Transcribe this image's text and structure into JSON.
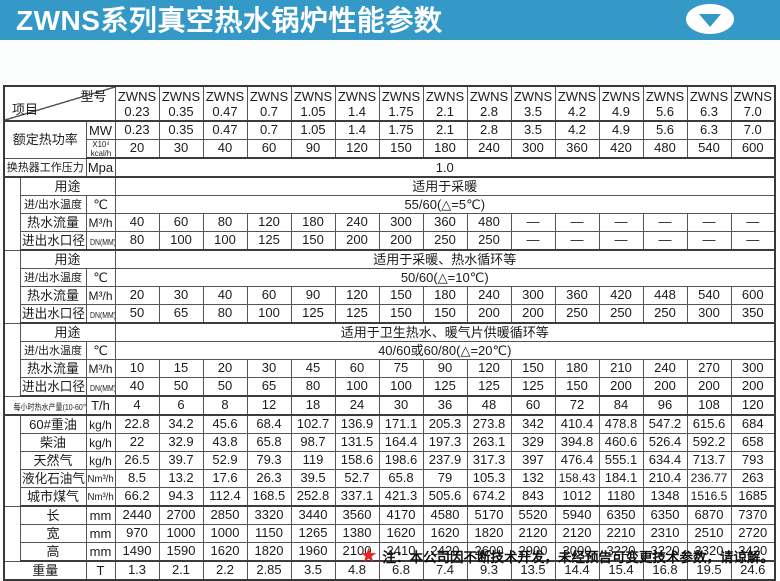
{
  "title": "ZWNS系列真空热水锅炉性能参数",
  "colors": {
    "header_blue": "#3599c8",
    "star_red": "#e8241f",
    "table_border": "#555555"
  },
  "footnote": {
    "star": "★",
    "text": "注：本公司因不断技术开发，未经预告可变更技术参数，请谅解。"
  },
  "table": {
    "corner": {
      "bottom_left": "项目",
      "top_right": "型号"
    },
    "model_prefix": "ZWNS",
    "model_sizes": [
      "0.23",
      "0.35",
      "0.47",
      "0.7",
      "1.05",
      "1.4",
      "1.75",
      "2.1",
      "2.8",
      "3.5",
      "4.2",
      "4.9",
      "5.6",
      "6.3",
      "7.0"
    ],
    "rows": [
      {
        "name": "rated-power-mw",
        "label": "额定热功率",
        "label_rowspan": 2,
        "wide": true,
        "unit": "MW",
        "values": [
          "0.23",
          "0.35",
          "0.47",
          "0.7",
          "1.05",
          "1.4",
          "1.75",
          "2.1",
          "2.8",
          "3.5",
          "4.2",
          "4.9",
          "5.6",
          "6.3",
          "7.0"
        ]
      },
      {
        "name": "rated-power-kcal",
        "unit_lines": [
          "X10⁴",
          "kcal/h"
        ],
        "sec": true,
        "values": [
          "20",
          "30",
          "40",
          "60",
          "90",
          "120",
          "150",
          "180",
          "240",
          "300",
          "360",
          "420",
          "480",
          "540",
          "600"
        ]
      },
      {
        "name": "exchanger-working-pressure",
        "label": "换热器工作压力",
        "wide": true,
        "unit": "Mpa",
        "sec": true,
        "span": "1.0"
      },
      {
        "name": "a-usage",
        "group": "A型换热器",
        "group_rowspan": 4,
        "label": "用途",
        "merge_unit": true,
        "span": "适用于采暖"
      },
      {
        "name": "a-inlet-outlet-temp",
        "label": "进/出水温度",
        "unit": "℃",
        "span": "55/60(△=5℃)"
      },
      {
        "name": "a-hot-water-flow",
        "label": "热水流量",
        "unit": "M³/h",
        "values": [
          "40",
          "60",
          "80",
          "120",
          "180",
          "240",
          "300",
          "360",
          "480",
          "—",
          "—",
          "—",
          "—",
          "—",
          "—"
        ]
      },
      {
        "name": "a-pipe-diameter",
        "label": "进出水口径",
        "unit": "DN(MM)",
        "sec": true,
        "values": [
          "80",
          "100",
          "100",
          "125",
          "150",
          "200",
          "200",
          "250",
          "250",
          "—",
          "—",
          "—",
          "—",
          "—",
          "—"
        ]
      },
      {
        "name": "b-usage",
        "group": "B型换热器",
        "group_rowspan": 4,
        "label": "用途",
        "merge_unit": true,
        "span": "适用于采暖、热水循环等"
      },
      {
        "name": "b-inlet-outlet-temp",
        "label": "进/出水温度",
        "unit": "℃",
        "span": "50/60(△=10℃)"
      },
      {
        "name": "b-hot-water-flow",
        "label": "热水流量",
        "unit": "M³/h",
        "values": [
          "20",
          "30",
          "40",
          "60",
          "90",
          "120",
          "150",
          "180",
          "240",
          "300",
          "360",
          "420",
          "448",
          "540",
          "600"
        ]
      },
      {
        "name": "b-pipe-diameter",
        "label": "进出水口径",
        "unit": "DN(MM)",
        "sec": true,
        "values": [
          "50",
          "65",
          "80",
          "100",
          "125",
          "125",
          "150",
          "150",
          "200",
          "200",
          "250",
          "250",
          "250",
          "300",
          "350"
        ]
      },
      {
        "name": "c-usage",
        "group": "C型换热器",
        "group_rowspan": 4,
        "label": "用途",
        "merge_unit": true,
        "span": "适用于卫生热水、暖气片供暖循环等"
      },
      {
        "name": "c-inlet-outlet-temp",
        "label": "进/出水温度",
        "unit": "℃",
        "span": "40/60或60/80(△=20℃)"
      },
      {
        "name": "c-hot-water-flow",
        "label": "热水流量",
        "unit": "M³/h",
        "values": [
          "10",
          "15",
          "20",
          "30",
          "45",
          "60",
          "75",
          "90",
          "120",
          "150",
          "180",
          "210",
          "240",
          "270",
          "300"
        ]
      },
      {
        "name": "c-pipe-diameter",
        "label": "进出水口径",
        "unit": "DN(MM)",
        "sec": true,
        "values": [
          "40",
          "50",
          "50",
          "65",
          "80",
          "100",
          "100",
          "125",
          "125",
          "125",
          "150",
          "200",
          "200",
          "200",
          "200"
        ]
      },
      {
        "name": "hourly-hot-water-output",
        "label": "每小时热水产量(10-60℃)",
        "wide": true,
        "unit": "T/h",
        "sec": true,
        "values": [
          "4",
          "6",
          "8",
          "12",
          "18",
          "24",
          "30",
          "36",
          "48",
          "60",
          "72",
          "84",
          "96",
          "108",
          "120"
        ]
      },
      {
        "name": "fuel-heavy-oil-60",
        "group": "燃料消耗量",
        "group_rowspan": 5,
        "label": "60#重油",
        "unit": "kg/h",
        "values": [
          "22.8",
          "34.2",
          "45.6",
          "68.4",
          "102.7",
          "136.9",
          "171.1",
          "205.3",
          "273.8",
          "342",
          "410.4",
          "478.8",
          "547.2",
          "615.6",
          "684"
        ]
      },
      {
        "name": "fuel-diesel",
        "label": "柴油",
        "unit": "kg/h",
        "values": [
          "22",
          "32.9",
          "43.8",
          "65.8",
          "98.7",
          "131.5",
          "164.4",
          "197.3",
          "263.1",
          "329",
          "394.8",
          "460.6",
          "526.4",
          "592.2",
          "658"
        ]
      },
      {
        "name": "fuel-natural-gas",
        "label": "天然气",
        "unit": "kg/h",
        "values": [
          "26.5",
          "39.7",
          "52.9",
          "79.3",
          "119",
          "158.6",
          "198.6",
          "237.9",
          "317.3",
          "397",
          "476.4",
          "555.1",
          "634.4",
          "713.7",
          "793"
        ]
      },
      {
        "name": "fuel-lpg",
        "label": "液化石油气",
        "unit": "Nm³/h",
        "values": [
          "8.5",
          "13.2",
          "17.6",
          "26.3",
          "39.5",
          "52.7",
          "65.8",
          "79",
          "105.3",
          "132",
          "158.43",
          "184.1",
          "210.4",
          "236.77",
          "263"
        ]
      },
      {
        "name": "fuel-city-gas",
        "label": "城市煤气",
        "unit": "Nm³/h",
        "sec": true,
        "values": [
          "66.2",
          "94.3",
          "112.4",
          "168.5",
          "252.8",
          "337.1",
          "421.3",
          "505.6",
          "674.2",
          "843",
          "1012",
          "1180",
          "1348",
          "1516.5",
          "1685"
        ]
      },
      {
        "name": "dim-length",
        "group": "外形尺寸",
        "group_rowspan": 3,
        "label": "长",
        "unit": "mm",
        "values": [
          "2440",
          "2700",
          "2850",
          "3320",
          "3440",
          "3560",
          "4170",
          "4580",
          "5170",
          "5520",
          "5940",
          "6350",
          "6350",
          "6870",
          "7370"
        ]
      },
      {
        "name": "dim-width",
        "label": "宽",
        "unit": "mm",
        "values": [
          "970",
          "1000",
          "1000",
          "1150",
          "1265",
          "1380",
          "1620",
          "1620",
          "1820",
          "2120",
          "2120",
          "2210",
          "2310",
          "2510",
          "2720"
        ]
      },
      {
        "name": "dim-height",
        "label": "高",
        "unit": "mm",
        "sec": true,
        "values": [
          "1490",
          "1590",
          "1620",
          "1820",
          "1960",
          "2100",
          "2410",
          "2420",
          "2600",
          "2900",
          "3000",
          "3220",
          "3220",
          "3320",
          "3420"
        ]
      },
      {
        "name": "weight",
        "label": "重量",
        "wide": true,
        "unit": "T",
        "values": [
          "1.3",
          "2.1",
          "2.2",
          "2.85",
          "3.5",
          "4.8",
          "6.8",
          "7.4",
          "9.3",
          "13.5",
          "14.4",
          "15.4",
          "16.8",
          "19.5",
          "24.6"
        ]
      }
    ]
  }
}
